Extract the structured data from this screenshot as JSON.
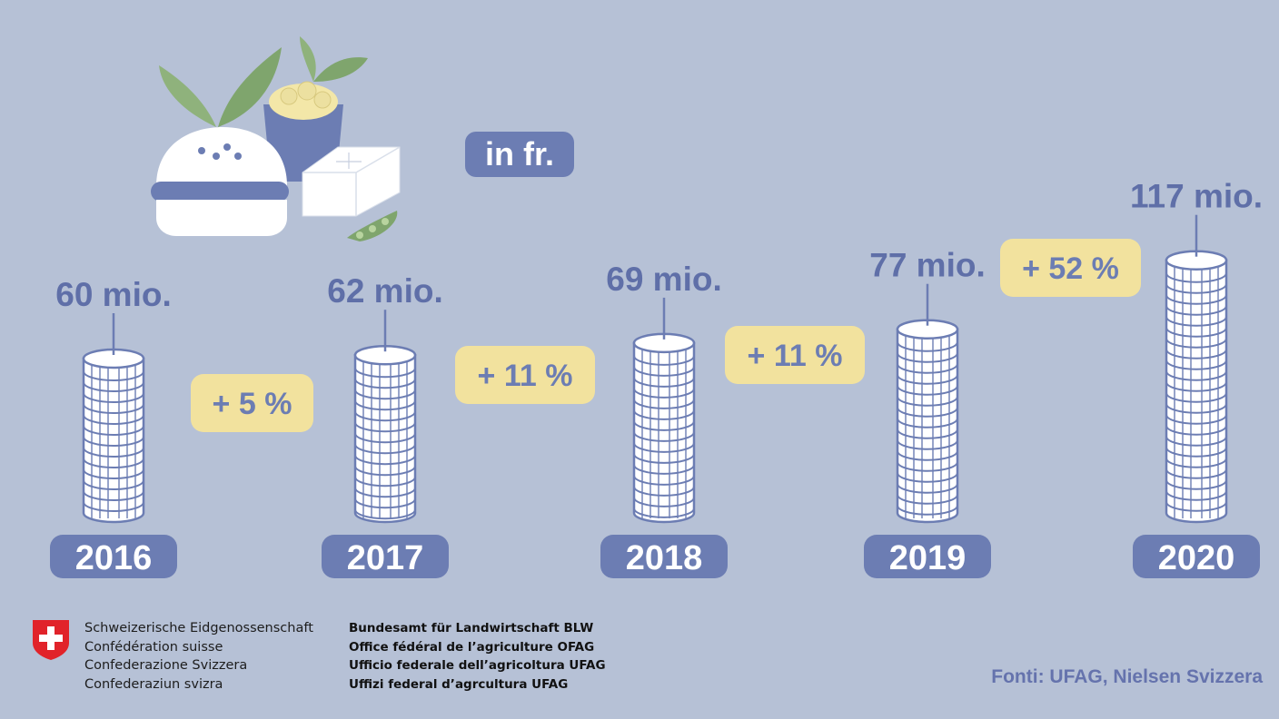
{
  "unit_label": "in fr.",
  "chart_data": {
    "type": "bar",
    "title": "",
    "xlabel": "",
    "ylabel": "",
    "categories": [
      "2016",
      "2017",
      "2018",
      "2019",
      "2020"
    ],
    "values": [
      60,
      62,
      69,
      77,
      117
    ],
    "value_labels": [
      "60 mio.",
      "62 mio.",
      "69 mio.",
      "77 mio.",
      "117 mio."
    ],
    "changes": [
      "+ 5 %",
      "+ 11 %",
      "+ 11 %",
      "+ 52 %"
    ],
    "unit": "mio.",
    "grid": false
  },
  "footer": {
    "federal_lines": [
      "Schweizerische Eidgenossenschaft",
      "Confédération suisse",
      "Confederazione Svizzera",
      "Confederaziun svizra"
    ],
    "office_lines": [
      "Bundesamt für Landwirtschaft BLW",
      "Office fédéral de l’agriculture OFAG",
      "Ufficio federale dell’agricoltura UFAG",
      "Uffizi federal d’agrcultura UFAG"
    ],
    "source": "Fonti: UFAG, Nielsen Svizzera"
  },
  "colors": {
    "background": "#b6c1d6",
    "accent": "#6c7db3",
    "label_text": "#5f6fa8",
    "badge_fill": "#f2e29e",
    "coin_fill": "#ffffff",
    "flag_red": "#e1232a"
  },
  "icons": [
    "plant-based-food-illustration",
    "swiss-cross-icon"
  ]
}
